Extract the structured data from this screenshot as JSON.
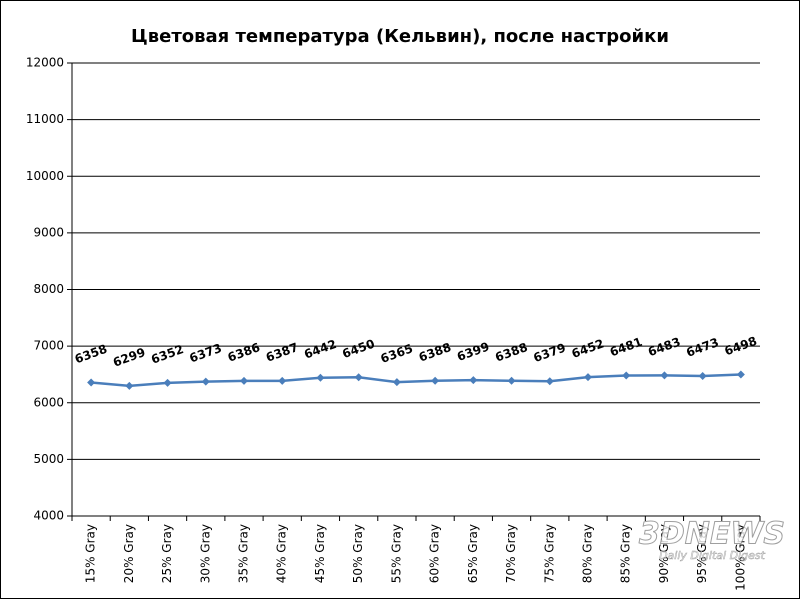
{
  "chart_data": {
    "type": "line",
    "title": "Цветовая температура (Кельвин),  после настройки",
    "categories": [
      "15% Gray",
      "20% Gray",
      "25% Gray",
      "30% Gray",
      "35% Gray",
      "40% Gray",
      "45% Gray",
      "50% Gray",
      "55% Gray",
      "60% Gray",
      "65% Gray",
      "70% Gray",
      "75% Gray",
      "80% Gray",
      "85% Gray",
      "90% Gray",
      "95% Gray",
      "100% Gray"
    ],
    "series": [
      {
        "name": "Цветовая температура",
        "color": "#4a7ebb",
        "values": [
          6358,
          6299,
          6352,
          6373,
          6386,
          6387,
          6442,
          6450,
          6365,
          6388,
          6399,
          6388,
          6379,
          6452,
          6481,
          6483,
          6473,
          6498
        ]
      }
    ],
    "ylim": [
      4000,
      12000
    ],
    "yticks": [
      4000,
      5000,
      6000,
      7000,
      8000,
      9000,
      10000,
      11000,
      12000
    ],
    "grid": true,
    "watermark": "3DNEWS",
    "watermark_subtitle": "Daily Digital Digest"
  }
}
